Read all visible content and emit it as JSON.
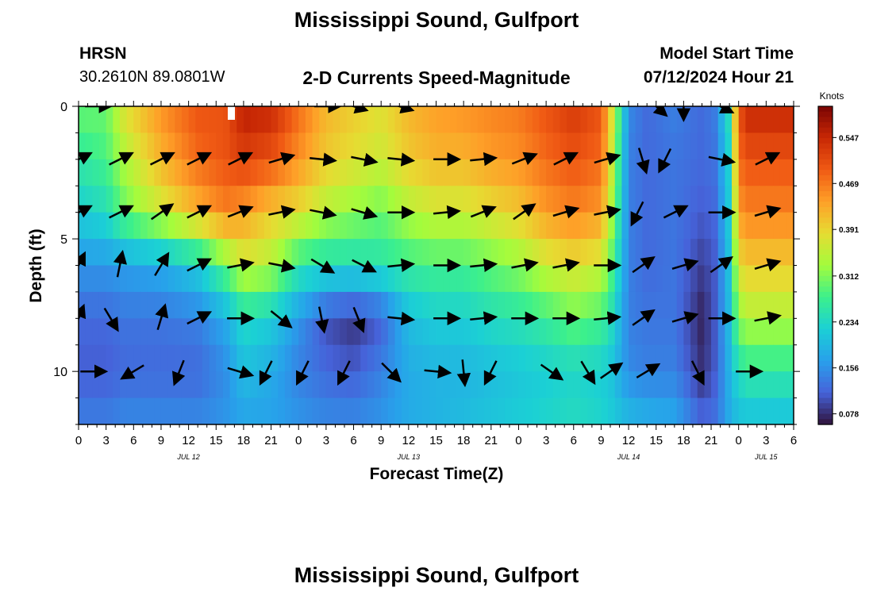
{
  "header": {
    "title": "Mississippi Sound, Gulfport",
    "station_id": "HRSN",
    "station_coords": "30.2610N  89.0801W",
    "subtitle": "2-D Currents Speed-Magnitude",
    "model_start_label": "Model Start Time",
    "model_start_value": "07/12/2024 Hour 21"
  },
  "footer": {
    "title": "Mississippi Sound, Gulfport"
  },
  "chart_data": {
    "type": "heatmap",
    "title": "2-D Currents Speed-Magnitude",
    "xlabel": "Forecast Time(Z)",
    "ylabel": "Depth (ft)",
    "x_ticks": [
      "0",
      "3",
      "6",
      "9",
      "12",
      "15",
      "18",
      "21",
      "0",
      "3",
      "6",
      "9",
      "12",
      "15",
      "18",
      "21",
      "0",
      "3",
      "6",
      "9",
      "12",
      "15",
      "18",
      "21",
      "0",
      "3",
      "6"
    ],
    "date_labels": [
      {
        "label": "JUL 12",
        "hour": 12
      },
      {
        "label": "JUL 13",
        "hour": 36
      },
      {
        "label": "JUL 14",
        "hour": 60
      },
      {
        "label": "JUL 15",
        "hour": 75
      }
    ],
    "x_range_hours": [
      0,
      78
    ],
    "y_ticks": [
      0,
      5,
      10
    ],
    "ylim": [
      0,
      12
    ],
    "y_inverted": true,
    "colorbar": {
      "label": "Knots",
      "ticks": [
        0.078,
        0.156,
        0.234,
        0.312,
        0.391,
        0.469,
        0.547
      ],
      "range": [
        0.06,
        0.6
      ]
    },
    "speed_profile_hours": [
      0,
      3,
      5,
      9,
      13,
      16,
      18,
      21,
      24,
      27,
      30,
      33,
      36,
      39,
      42,
      45,
      48,
      51,
      54,
      57,
      58,
      60,
      62,
      65,
      68,
      69.5,
      71,
      72,
      73,
      75,
      78
    ],
    "speed_profile": [
      [
        0.3,
        0.3,
        0.38,
        0.45,
        0.5,
        0.5,
        0.56,
        0.55,
        0.48,
        0.42,
        0.4,
        0.38,
        0.42,
        0.44,
        0.45,
        0.46,
        0.47,
        0.5,
        0.53,
        0.5,
        0.4,
        0.15,
        0.12,
        0.14,
        0.12,
        0.14,
        0.25,
        0.5,
        0.55,
        0.55,
        0.55
      ],
      [
        0.26,
        0.28,
        0.34,
        0.42,
        0.48,
        0.5,
        0.52,
        0.5,
        0.45,
        0.4,
        0.38,
        0.36,
        0.4,
        0.42,
        0.42,
        0.44,
        0.45,
        0.48,
        0.5,
        0.48,
        0.38,
        0.14,
        0.12,
        0.13,
        0.12,
        0.13,
        0.23,
        0.48,
        0.5,
        0.5,
        0.5
      ],
      [
        0.22,
        0.24,
        0.3,
        0.36,
        0.42,
        0.46,
        0.44,
        0.4,
        0.38,
        0.34,
        0.32,
        0.3,
        0.34,
        0.36,
        0.36,
        0.38,
        0.4,
        0.44,
        0.46,
        0.44,
        0.35,
        0.14,
        0.12,
        0.13,
        0.11,
        0.12,
        0.22,
        0.44,
        0.46,
        0.46,
        0.46
      ],
      [
        0.16,
        0.16,
        0.17,
        0.18,
        0.22,
        0.3,
        0.36,
        0.34,
        0.26,
        0.24,
        0.24,
        0.25,
        0.27,
        0.28,
        0.28,
        0.3,
        0.32,
        0.36,
        0.38,
        0.36,
        0.3,
        0.14,
        0.12,
        0.13,
        0.09,
        0.11,
        0.21,
        0.38,
        0.4,
        0.4,
        0.4
      ],
      [
        0.12,
        0.12,
        0.13,
        0.13,
        0.14,
        0.18,
        0.24,
        0.22,
        0.16,
        0.1,
        0.08,
        0.11,
        0.2,
        0.22,
        0.22,
        0.24,
        0.25,
        0.27,
        0.3,
        0.28,
        0.25,
        0.14,
        0.13,
        0.13,
        0.07,
        0.11,
        0.2,
        0.32,
        0.34,
        0.34,
        0.34
      ],
      [
        0.11,
        0.11,
        0.12,
        0.12,
        0.12,
        0.15,
        0.2,
        0.18,
        0.14,
        0.12,
        0.11,
        0.14,
        0.18,
        0.19,
        0.19,
        0.2,
        0.21,
        0.22,
        0.23,
        0.22,
        0.21,
        0.15,
        0.14,
        0.14,
        0.08,
        0.11,
        0.19,
        0.24,
        0.26,
        0.26,
        0.26
      ],
      [
        0.14,
        0.14,
        0.15,
        0.15,
        0.15,
        0.16,
        0.17,
        0.17,
        0.16,
        0.15,
        0.15,
        0.16,
        0.18,
        0.19,
        0.2,
        0.21,
        0.22,
        0.23,
        0.24,
        0.23,
        0.22,
        0.2,
        0.19,
        0.18,
        0.12,
        0.13,
        0.18,
        0.2,
        0.2,
        0.2,
        0.2
      ]
    ],
    "speed_profile_depths": [
      0,
      2,
      4,
      6,
      8,
      10,
      12
    ],
    "vectors": [
      {
        "depth": 0,
        "hour": 2,
        "dx": 1,
        "dy": 0
      },
      {
        "depth": 0,
        "hour": 27,
        "dx": 1,
        "dy": 0
      },
      {
        "depth": 0,
        "hour": 30,
        "dx": 1,
        "dy": 0.3
      },
      {
        "depth": 0,
        "hour": 35,
        "dx": 1,
        "dy": 0.3
      },
      {
        "depth": 0,
        "hour": 63,
        "dx": 1,
        "dy": 0.9
      },
      {
        "depth": 0,
        "hour": 66,
        "dx": 0,
        "dy": 1
      },
      {
        "depth": 0,
        "hour": 70,
        "dx": 1,
        "dy": 0.5
      },
      {
        "depth": 2,
        "hour": 0,
        "dx": 1,
        "dy": -0.5
      },
      {
        "depth": 2,
        "hour": 4.5,
        "dx": 1,
        "dy": -0.5
      },
      {
        "depth": 2,
        "hour": 9,
        "dx": 1,
        "dy": -0.5
      },
      {
        "depth": 2,
        "hour": 13,
        "dx": 1,
        "dy": -0.5
      },
      {
        "depth": 2,
        "hour": 17.5,
        "dx": 1,
        "dy": -0.5
      },
      {
        "depth": 2,
        "hour": 22,
        "dx": 1,
        "dy": -0.3
      },
      {
        "depth": 2,
        "hour": 26.5,
        "dx": 1,
        "dy": 0.1
      },
      {
        "depth": 2,
        "hour": 31,
        "dx": 1,
        "dy": 0.2
      },
      {
        "depth": 2,
        "hour": 35,
        "dx": 1,
        "dy": 0.1
      },
      {
        "depth": 2,
        "hour": 40,
        "dx": 1,
        "dy": 0
      },
      {
        "depth": 2,
        "hour": 44,
        "dx": 1,
        "dy": -0.1
      },
      {
        "depth": 2,
        "hour": 48.5,
        "dx": 1,
        "dy": -0.4
      },
      {
        "depth": 2,
        "hour": 53,
        "dx": 1,
        "dy": -0.5
      },
      {
        "depth": 2,
        "hour": 57.5,
        "dx": 1,
        "dy": -0.3
      },
      {
        "depth": 2,
        "hour": 61.5,
        "dx": 0.3,
        "dy": 1
      },
      {
        "depth": 2,
        "hour": 64,
        "dx": -0.5,
        "dy": 1
      },
      {
        "depth": 2,
        "hour": 70,
        "dx": 1,
        "dy": 0.2
      },
      {
        "depth": 2,
        "hour": 75,
        "dx": 1,
        "dy": -0.5
      },
      {
        "depth": 4,
        "hour": 0,
        "dx": 1,
        "dy": -0.5
      },
      {
        "depth": 4,
        "hour": 4.5,
        "dx": 1,
        "dy": -0.5
      },
      {
        "depth": 4,
        "hour": 9,
        "dx": 1,
        "dy": -0.7
      },
      {
        "depth": 4,
        "hour": 13,
        "dx": 1,
        "dy": -0.5
      },
      {
        "depth": 4,
        "hour": 17.5,
        "dx": 1,
        "dy": -0.4
      },
      {
        "depth": 4,
        "hour": 22,
        "dx": 1,
        "dy": -0.2
      },
      {
        "depth": 4,
        "hour": 26.5,
        "dx": 1,
        "dy": 0.2
      },
      {
        "depth": 4,
        "hour": 31,
        "dx": 1,
        "dy": 0.3
      },
      {
        "depth": 4,
        "hour": 35,
        "dx": 1,
        "dy": 0
      },
      {
        "depth": 4,
        "hour": 40,
        "dx": 1,
        "dy": -0.1
      },
      {
        "depth": 4,
        "hour": 44,
        "dx": 1,
        "dy": -0.4
      },
      {
        "depth": 4,
        "hour": 48.5,
        "dx": 1,
        "dy": -0.7
      },
      {
        "depth": 4,
        "hour": 53,
        "dx": 1,
        "dy": -0.3
      },
      {
        "depth": 4,
        "hour": 57.5,
        "dx": 1,
        "dy": -0.2
      },
      {
        "depth": 4,
        "hour": 61,
        "dx": -0.5,
        "dy": 1
      },
      {
        "depth": 4,
        "hour": 65,
        "dx": 1,
        "dy": -0.5
      },
      {
        "depth": 4,
        "hour": 70,
        "dx": 1,
        "dy": 0
      },
      {
        "depth": 4,
        "hour": 75,
        "dx": 1,
        "dy": -0.3
      },
      {
        "depth": 6,
        "hour": 0,
        "dx": 0.5,
        "dy": -1
      },
      {
        "depth": 6,
        "hour": 4.5,
        "dx": 0.2,
        "dy": -1
      },
      {
        "depth": 6,
        "hour": 9,
        "dx": 0.6,
        "dy": -1
      },
      {
        "depth": 6,
        "hour": 13,
        "dx": 1,
        "dy": -0.5
      },
      {
        "depth": 6,
        "hour": 17.5,
        "dx": 1,
        "dy": -0.2
      },
      {
        "depth": 6,
        "hour": 22,
        "dx": 1,
        "dy": 0.2
      },
      {
        "depth": 6,
        "hour": 26.5,
        "dx": 1,
        "dy": 0.6
      },
      {
        "depth": 6,
        "hour": 31,
        "dx": 1,
        "dy": 0.5
      },
      {
        "depth": 6,
        "hour": 35,
        "dx": 1,
        "dy": -0.1
      },
      {
        "depth": 6,
        "hour": 40,
        "dx": 1,
        "dy": 0
      },
      {
        "depth": 6,
        "hour": 44,
        "dx": 1,
        "dy": -0.1
      },
      {
        "depth": 6,
        "hour": 48.5,
        "dx": 1,
        "dy": -0.2
      },
      {
        "depth": 6,
        "hour": 53,
        "dx": 1,
        "dy": -0.2
      },
      {
        "depth": 6,
        "hour": 57.5,
        "dx": 1,
        "dy": 0
      },
      {
        "depth": 6,
        "hour": 61.5,
        "dx": 1,
        "dy": -0.7
      },
      {
        "depth": 6,
        "hour": 66,
        "dx": 1,
        "dy": -0.3
      },
      {
        "depth": 6,
        "hour": 70,
        "dx": 1,
        "dy": -0.7
      },
      {
        "depth": 6,
        "hour": 75,
        "dx": 1,
        "dy": -0.3
      },
      {
        "depth": 8,
        "hour": 0,
        "dx": 0.4,
        "dy": -1
      },
      {
        "depth": 8,
        "hour": 3.5,
        "dx": 0.6,
        "dy": 1
      },
      {
        "depth": 8,
        "hour": 9,
        "dx": 0.3,
        "dy": -1
      },
      {
        "depth": 8,
        "hour": 13,
        "dx": 1,
        "dy": -0.5
      },
      {
        "depth": 8,
        "hour": 17.5,
        "dx": 1,
        "dy": 0
      },
      {
        "depth": 8,
        "hour": 22,
        "dx": 1,
        "dy": 0.8
      },
      {
        "depth": 8,
        "hour": 26.5,
        "dx": 0.2,
        "dy": 1
      },
      {
        "depth": 8,
        "hour": 30.5,
        "dx": 0.4,
        "dy": 1
      },
      {
        "depth": 8,
        "hour": 35,
        "dx": 1,
        "dy": 0.1
      },
      {
        "depth": 8,
        "hour": 40,
        "dx": 1,
        "dy": 0
      },
      {
        "depth": 8,
        "hour": 44,
        "dx": 1,
        "dy": -0.1
      },
      {
        "depth": 8,
        "hour": 48.5,
        "dx": 1,
        "dy": 0
      },
      {
        "depth": 8,
        "hour": 53,
        "dx": 1,
        "dy": 0
      },
      {
        "depth": 8,
        "hour": 57.5,
        "dx": 1,
        "dy": -0.1
      },
      {
        "depth": 8,
        "hour": 61.5,
        "dx": 1,
        "dy": -0.7
      },
      {
        "depth": 8,
        "hour": 66,
        "dx": 1,
        "dy": -0.3
      },
      {
        "depth": 8,
        "hour": 70,
        "dx": 1,
        "dy": 0
      },
      {
        "depth": 8,
        "hour": 75,
        "dx": 1,
        "dy": -0.2
      },
      {
        "depth": 10,
        "hour": 1.5,
        "dx": 1,
        "dy": 0
      },
      {
        "depth": 10,
        "hour": 6,
        "dx": -1,
        "dy": 0.6
      },
      {
        "depth": 10,
        "hour": 11,
        "dx": -0.4,
        "dy": 1
      },
      {
        "depth": 10,
        "hour": 17.5,
        "dx": 1,
        "dy": 0.3
      },
      {
        "depth": 10,
        "hour": 20.5,
        "dx": -0.5,
        "dy": 1
      },
      {
        "depth": 10,
        "hour": 24.5,
        "dx": -0.5,
        "dy": 1
      },
      {
        "depth": 10,
        "hour": 29,
        "dx": -0.5,
        "dy": 1
      },
      {
        "depth": 10,
        "hour": 34,
        "dx": 1,
        "dy": 1
      },
      {
        "depth": 10,
        "hour": 39,
        "dx": 1,
        "dy": 0.1
      },
      {
        "depth": 10,
        "hour": 42,
        "dx": 0.1,
        "dy": 1
      },
      {
        "depth": 10,
        "hour": 45,
        "dx": -0.5,
        "dy": 1
      },
      {
        "depth": 10,
        "hour": 51.5,
        "dx": 1,
        "dy": 0.7
      },
      {
        "depth": 10,
        "hour": 55.5,
        "dx": 0.6,
        "dy": 1
      },
      {
        "depth": 10,
        "hour": 58,
        "dx": 1,
        "dy": -0.7
      },
      {
        "depth": 10,
        "hour": 62,
        "dx": 1,
        "dy": -0.6
      },
      {
        "depth": 10,
        "hour": 67.5,
        "dx": 0.5,
        "dy": 1
      },
      {
        "depth": 10,
        "hour": 73,
        "dx": 1,
        "dy": 0
      }
    ]
  }
}
